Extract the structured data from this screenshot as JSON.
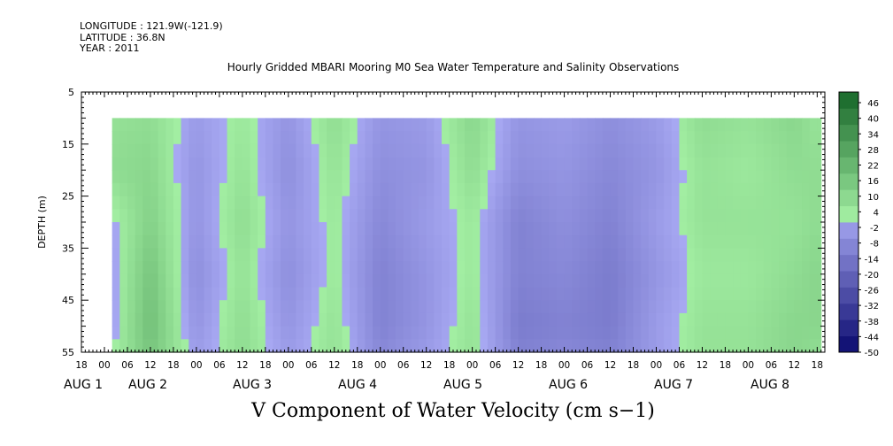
{
  "header": {
    "longitude": "LONGITUDE : 121.9W(-121.9)",
    "latitude": "LATITUDE : 36.8N",
    "year": "YEAR : 2011",
    "plot_title": "Hourly Gridded MBARI Mooring M0 Sea Water Temperature and Salinity Observations",
    "bottom_title": "V Component of Water Velocity (cm s−1)"
  },
  "chart_data": {
    "type": "heatmap",
    "title": "Hourly Gridded MBARI Mooring M0 Sea Water Temperature and Salinity Observations",
    "variable": "V Component of Water Velocity (cm s−1)",
    "ylabel": "DEPTH (m)",
    "y_range": [
      5,
      55
    ],
    "y_reversed": true,
    "y_ticks": [
      "5",
      "15",
      "25",
      "35",
      "45",
      "55"
    ],
    "data_depth_range": [
      10,
      55
    ],
    "x_range": [
      "2011-07-31 18:00",
      "2011-08-08 20:00"
    ],
    "data_time_range": [
      "2011-08-01 02:00",
      "2011-08-08 19:00"
    ],
    "x_hour_ticks": [
      "18",
      "00",
      "06",
      "12",
      "18",
      "00",
      "06",
      "12",
      "18",
      "00",
      "06",
      "12",
      "18",
      "00",
      "06",
      "12",
      "18",
      "00",
      "06",
      "12",
      "18",
      "00",
      "06",
      "12",
      "18",
      "00",
      "06",
      "12",
      "18",
      "00",
      "06",
      "12",
      "18"
    ],
    "x_day_labels": [
      "AUG  1",
      "AUG  2",
      "AUG  3",
      "AUG  4",
      "AUG  5",
      "AUG  6",
      "AUG  7",
      "AUG  8"
    ],
    "colorbar": {
      "levels": [
        -50,
        -44,
        -38,
        -32,
        -26,
        -20,
        -14,
        -8,
        -2,
        4,
        10,
        16,
        22,
        28,
        34,
        40,
        46
      ],
      "labels": [
        "46",
        "40",
        "34",
        "28",
        "22",
        "16",
        "10",
        "4",
        "-2",
        "-8",
        "-14",
        "-20",
        "-26",
        "-32",
        "-38",
        "-44",
        "-50"
      ],
      "color_low": "#0a0a6e",
      "color_mid_low": "#a7a8f2",
      "color_mid_high": "#a2eea2",
      "color_high": "#0a5a1e"
    },
    "time_hours": [
      0,
      12,
      24,
      36,
      48,
      60,
      72,
      84,
      96,
      108,
      120,
      132,
      144,
      156,
      168,
      180,
      185
    ],
    "depth_levels": [
      10,
      20,
      30,
      40,
      50,
      55
    ],
    "v_values": [
      [
        4,
        6,
        -4,
        2,
        -6,
        6,
        -6,
        -4,
        8,
        -6,
        -4,
        -8,
        -4,
        6,
        4,
        8,
        4
      ],
      [
        6,
        8,
        -6,
        4,
        -8,
        4,
        -8,
        -6,
        6,
        -8,
        -6,
        -10,
        -6,
        4,
        2,
        6,
        6
      ],
      [
        -4,
        10,
        -6,
        6,
        -6,
        2,
        -10,
        -4,
        2,
        -12,
        -8,
        -12,
        -4,
        4,
        4,
        4,
        6
      ],
      [
        -6,
        14,
        -8,
        4,
        -8,
        2,
        -12,
        -6,
        2,
        -12,
        -10,
        -14,
        -6,
        2,
        2,
        6,
        8
      ],
      [
        -6,
        16,
        -6,
        6,
        -6,
        4,
        -12,
        -6,
        4,
        -14,
        -12,
        -14,
        -4,
        4,
        4,
        8,
        8
      ],
      [
        -4,
        14,
        -4,
        6,
        -4,
        4,
        -10,
        -4,
        4,
        -12,
        -10,
        -12,
        -4,
        4,
        4,
        8,
        6
      ]
    ]
  }
}
